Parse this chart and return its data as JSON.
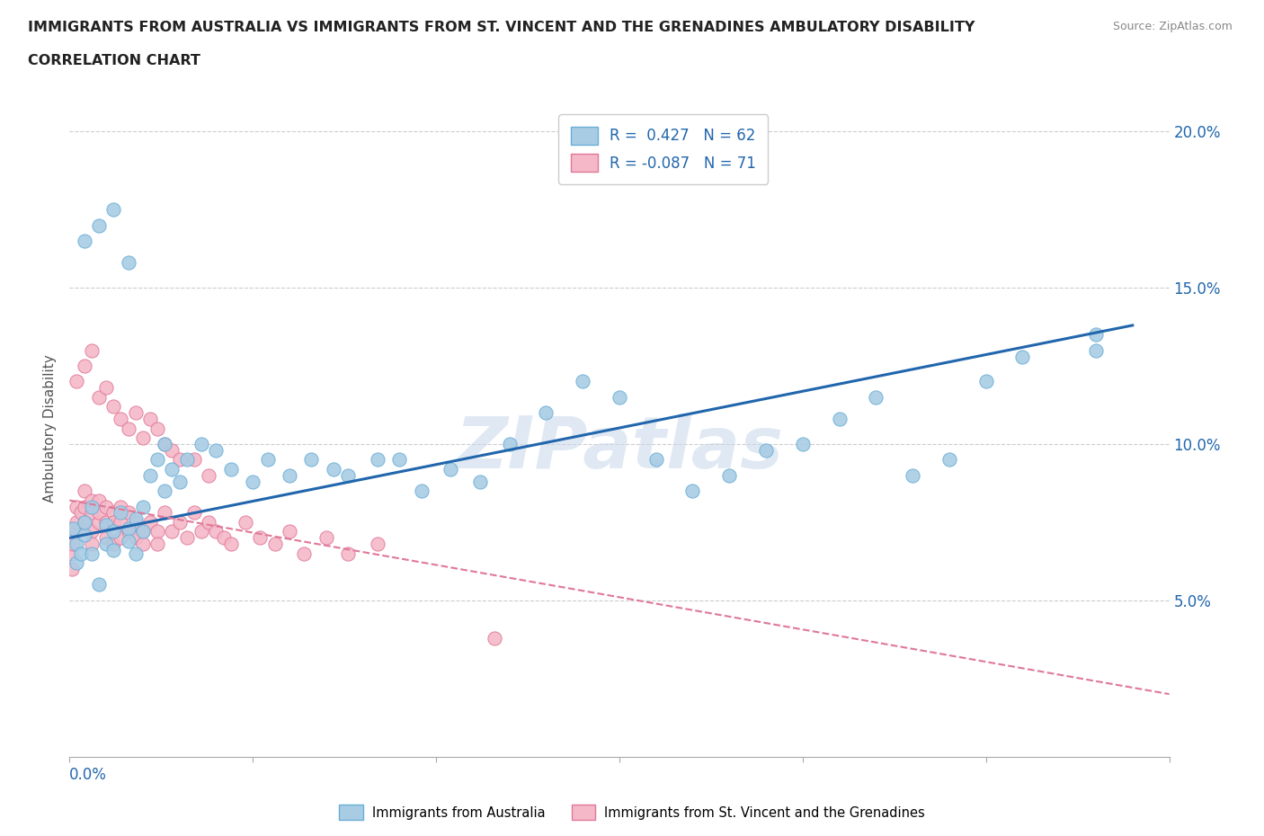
{
  "title_line1": "IMMIGRANTS FROM AUSTRALIA VS IMMIGRANTS FROM ST. VINCENT AND THE GRENADINES AMBULATORY DISABILITY",
  "title_line2": "CORRELATION CHART",
  "source_text": "Source: ZipAtlas.com",
  "watermark": "ZIPatlas",
  "ylabel": "Ambulatory Disability",
  "xlim": [
    0.0,
    0.15
  ],
  "ylim": [
    0.0,
    0.21
  ],
  "series_australia": {
    "label": "Immigrants from Australia",
    "color": "#a8cce4",
    "edge_color": "#6aaed6",
    "R": 0.427,
    "N": 62,
    "trend_color": "#2166ac",
    "trend_style": "solid",
    "trend_start_y": 0.07,
    "trend_end_y": 0.138,
    "trend_start_x": 0.0,
    "trend_end_x": 0.145
  },
  "series_stv": {
    "label": "Immigrants from St. Vincent and the Grenadines",
    "color": "#f4b8c8",
    "edge_color": "#e07898",
    "R": -0.087,
    "N": 71,
    "trend_color": "#e07898",
    "trend_style": "dashed",
    "trend_start_y": 0.082,
    "trend_end_y": 0.02,
    "trend_start_x": 0.0,
    "trend_end_x": 0.15
  },
  "background_color": "#ffffff",
  "grid_color": "#cccccc",
  "title_color": "#222222",
  "aus_x": [
    0.0005,
    0.001,
    0.001,
    0.0015,
    0.002,
    0.002,
    0.003,
    0.003,
    0.004,
    0.005,
    0.005,
    0.006,
    0.006,
    0.007,
    0.008,
    0.008,
    0.009,
    0.009,
    0.01,
    0.01,
    0.011,
    0.012,
    0.013,
    0.013,
    0.014,
    0.015,
    0.016,
    0.018,
    0.02,
    0.022,
    0.025,
    0.027,
    0.03,
    0.033,
    0.036,
    0.038,
    0.042,
    0.045,
    0.048,
    0.052,
    0.056,
    0.06,
    0.065,
    0.07,
    0.075,
    0.08,
    0.085,
    0.09,
    0.095,
    0.1,
    0.105,
    0.11,
    0.115,
    0.12,
    0.125,
    0.13,
    0.14,
    0.14,
    0.002,
    0.004,
    0.006,
    0.008
  ],
  "aus_y": [
    0.073,
    0.068,
    0.062,
    0.065,
    0.071,
    0.075,
    0.08,
    0.065,
    0.055,
    0.068,
    0.074,
    0.072,
    0.066,
    0.078,
    0.073,
    0.069,
    0.065,
    0.076,
    0.08,
    0.072,
    0.09,
    0.095,
    0.1,
    0.085,
    0.092,
    0.088,
    0.095,
    0.1,
    0.098,
    0.092,
    0.088,
    0.095,
    0.09,
    0.095,
    0.092,
    0.09,
    0.095,
    0.095,
    0.085,
    0.092,
    0.088,
    0.1,
    0.11,
    0.12,
    0.115,
    0.095,
    0.085,
    0.09,
    0.098,
    0.1,
    0.108,
    0.115,
    0.09,
    0.095,
    0.12,
    0.128,
    0.135,
    0.13,
    0.165,
    0.17,
    0.175,
    0.158
  ],
  "stv_x": [
    0.0002,
    0.0003,
    0.0005,
    0.001,
    0.001,
    0.001,
    0.0015,
    0.002,
    0.002,
    0.002,
    0.003,
    0.003,
    0.003,
    0.003,
    0.004,
    0.004,
    0.004,
    0.005,
    0.005,
    0.005,
    0.006,
    0.006,
    0.006,
    0.007,
    0.007,
    0.007,
    0.008,
    0.008,
    0.009,
    0.009,
    0.01,
    0.01,
    0.011,
    0.012,
    0.012,
    0.013,
    0.014,
    0.015,
    0.016,
    0.017,
    0.018,
    0.019,
    0.02,
    0.021,
    0.022,
    0.024,
    0.026,
    0.028,
    0.03,
    0.032,
    0.035,
    0.038,
    0.042,
    0.001,
    0.002,
    0.003,
    0.004,
    0.005,
    0.006,
    0.007,
    0.008,
    0.009,
    0.01,
    0.011,
    0.012,
    0.013,
    0.014,
    0.015,
    0.017,
    0.019,
    0.058
  ],
  "stv_y": [
    0.065,
    0.06,
    0.068,
    0.072,
    0.075,
    0.08,
    0.078,
    0.075,
    0.08,
    0.085,
    0.082,
    0.078,
    0.072,
    0.068,
    0.075,
    0.078,
    0.082,
    0.08,
    0.075,
    0.07,
    0.078,
    0.075,
    0.068,
    0.08,
    0.075,
    0.07,
    0.078,
    0.072,
    0.075,
    0.07,
    0.072,
    0.068,
    0.075,
    0.072,
    0.068,
    0.078,
    0.072,
    0.075,
    0.07,
    0.078,
    0.072,
    0.075,
    0.072,
    0.07,
    0.068,
    0.075,
    0.07,
    0.068,
    0.072,
    0.065,
    0.07,
    0.065,
    0.068,
    0.12,
    0.125,
    0.13,
    0.115,
    0.118,
    0.112,
    0.108,
    0.105,
    0.11,
    0.102,
    0.108,
    0.105,
    0.1,
    0.098,
    0.095,
    0.095,
    0.09,
    0.038
  ]
}
